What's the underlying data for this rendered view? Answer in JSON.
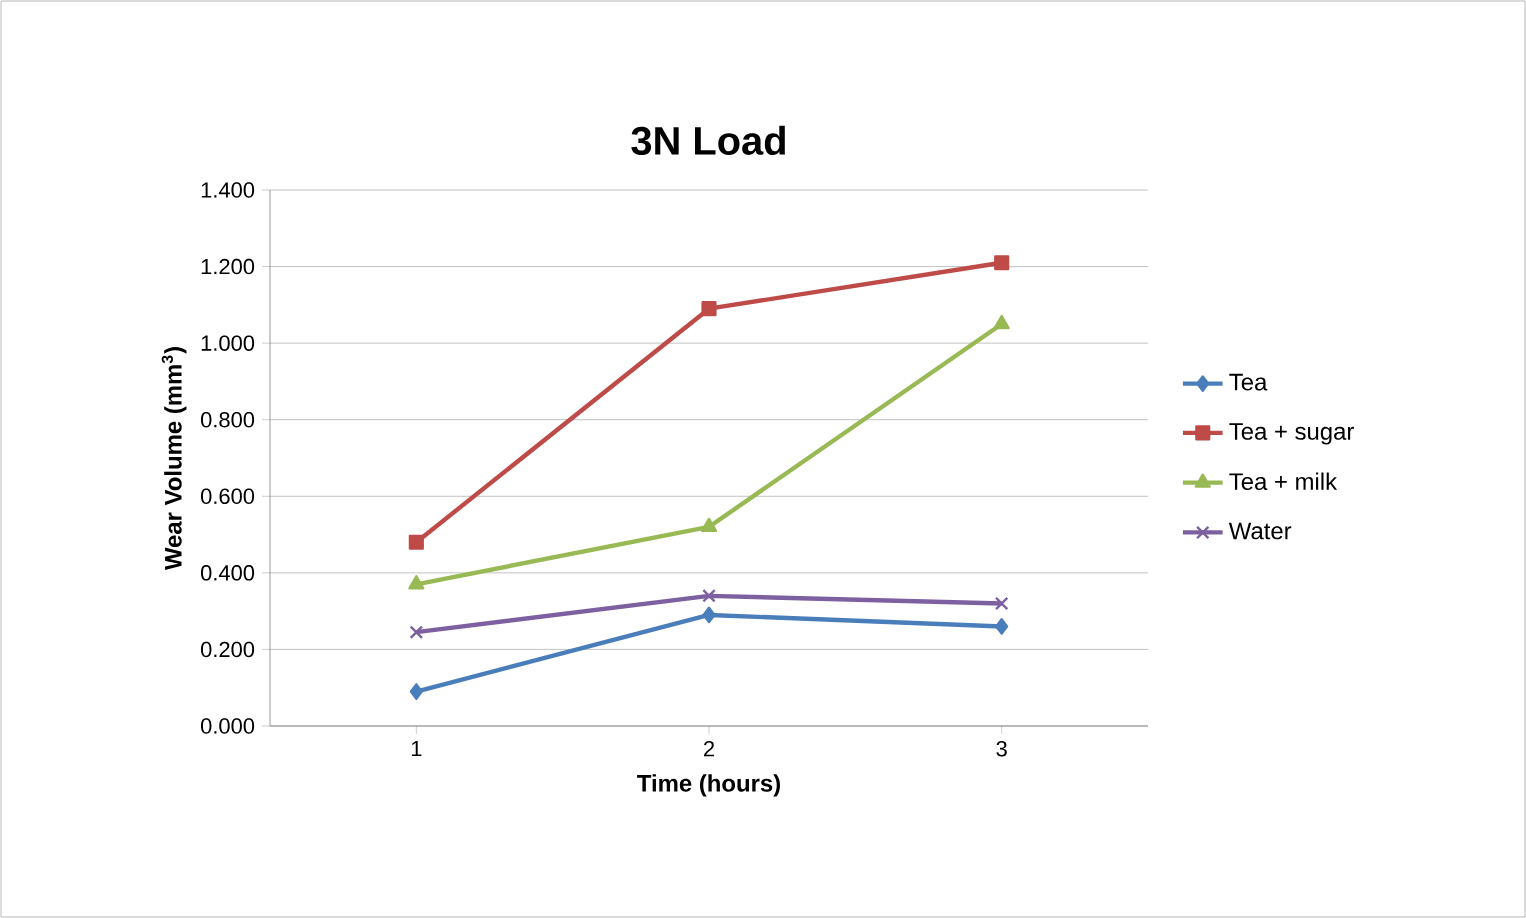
{
  "chart_data": {
    "type": "line",
    "title": "3N Load",
    "xlabel": "Time (hours)",
    "ylabel": "Wear Volume (mm$^{3}$)",
    "categories": [
      "1",
      "2",
      "3"
    ],
    "series": [
      {
        "name": "Tea",
        "color": "#4a7ebb",
        "marker": "diamond",
        "values": [
          0.09,
          0.29,
          0.26
        ]
      },
      {
        "name": "Tea + sugar",
        "color": "#be4b48",
        "marker": "square",
        "values": [
          0.48,
          1.09,
          1.21
        ]
      },
      {
        "name": "Tea + milk",
        "color": "#98b954",
        "marker": "triangle",
        "values": [
          0.37,
          0.52,
          1.05
        ]
      },
      {
        "name": "Water",
        "color": "#7d60a0",
        "marker": "cross",
        "values": [
          0.245,
          0.34,
          0.32
        ]
      }
    ],
    "ylim": [
      0,
      1.4
    ],
    "yticks": [
      {
        "value": 0,
        "label": "0.000"
      },
      {
        "value": 0.2,
        "label": "0.200"
      },
      {
        "value": 0.4,
        "label": "0.400"
      },
      {
        "value": 0.6,
        "label": "0.600"
      },
      {
        "value": 0.8,
        "label": "0.800"
      },
      {
        "value": 1.0,
        "label": "1.000"
      },
      {
        "value": 1.2,
        "label": "1.200"
      },
      {
        "value": 1.4,
        "label": "1.400"
      }
    ],
    "grid": "y",
    "legend": "right",
    "line_style": "solid"
  }
}
